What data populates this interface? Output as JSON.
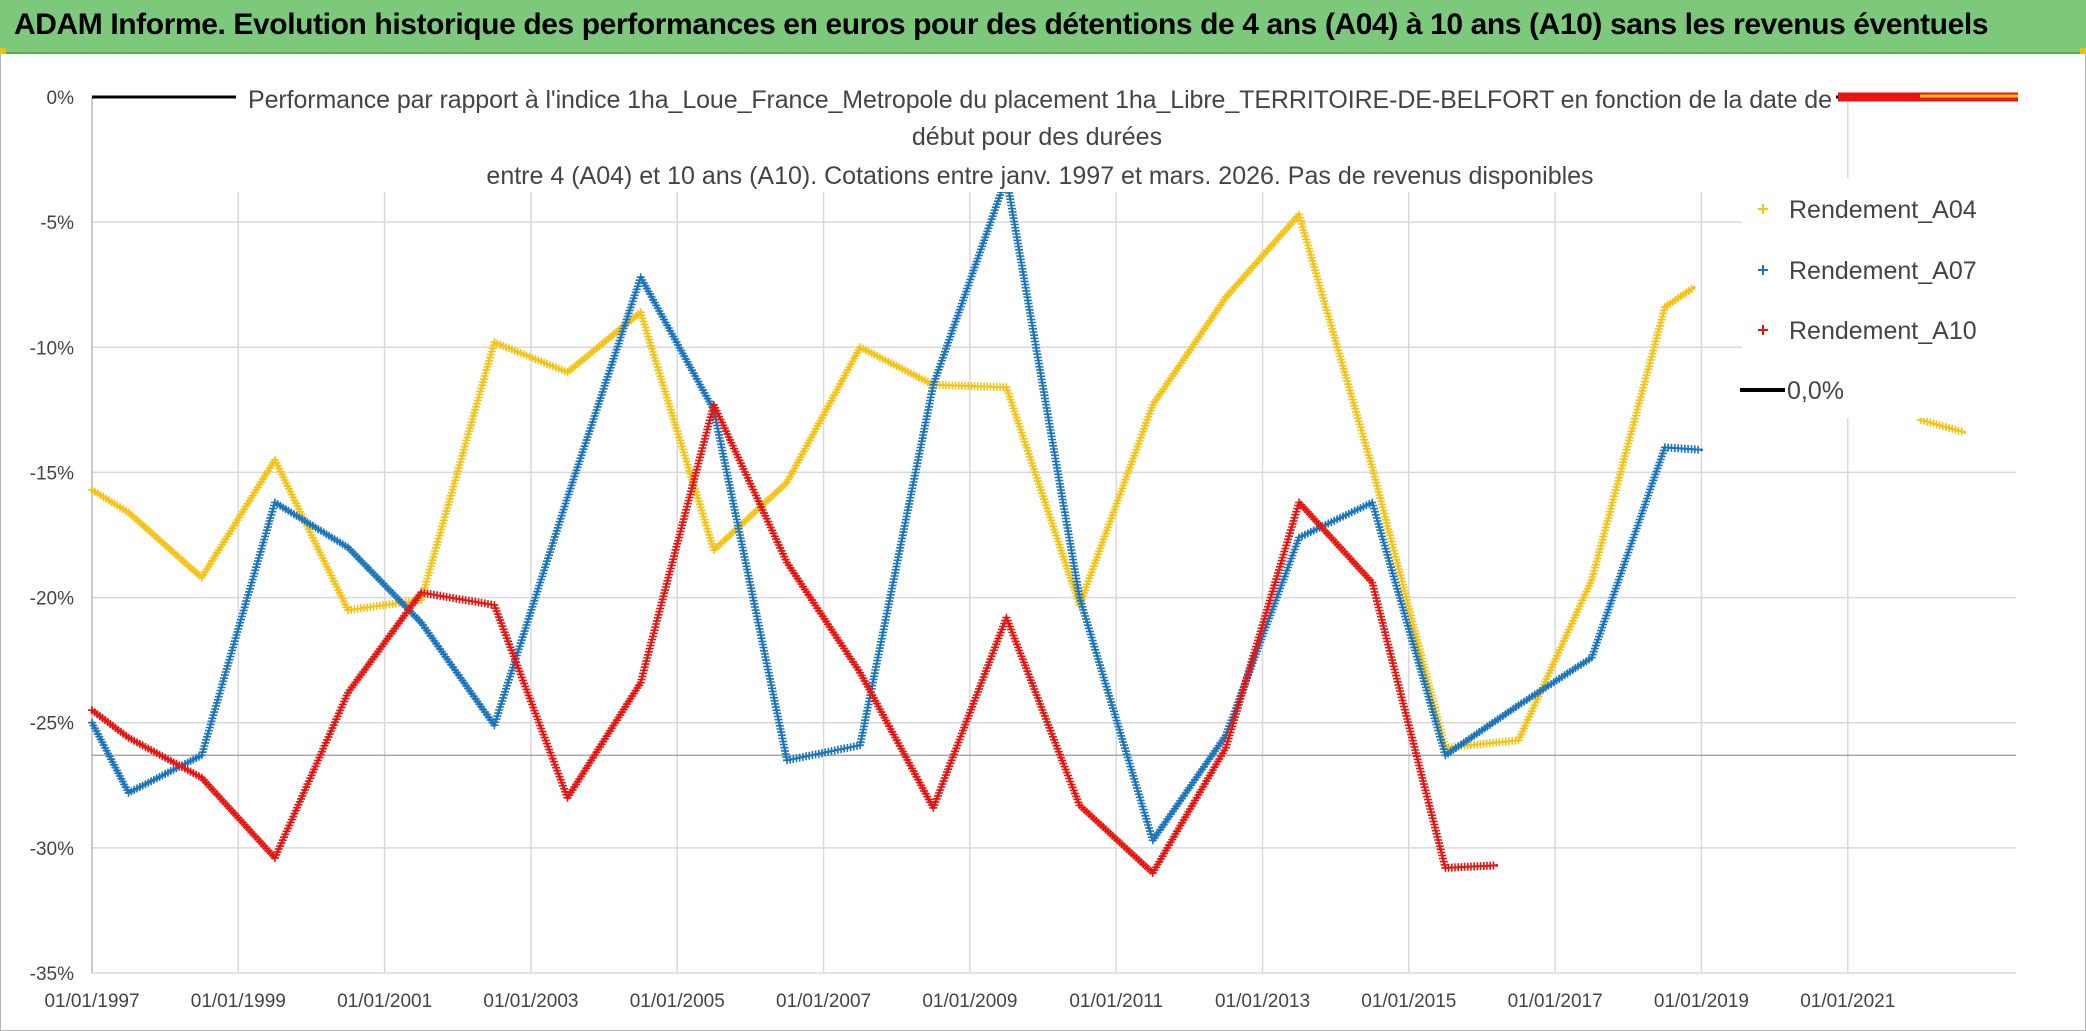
{
  "banner": {
    "title": "ADAM Informe. Evolution historique des performances en euros pour des détentions de 4 ans (A04) à 10 ans (A10) sans les revenus éventuels"
  },
  "chart_data": {
    "type": "scatter",
    "title_lines": [
      "Performance par rapport à l'indice 1ha_Loue_France_Metropole  du placement 1ha_Libre_TERRITOIRE-DE-BELFORT en fonction de la date de",
      "début pour des durées",
      "entre 4 (A04) et 10 ans (A10). Cotations entre janv. 1997 et mars. 2026. Pas de revenus disponibles"
    ],
    "xlabel": "",
    "ylabel": "",
    "xlim": [
      1997.0,
      2023.3
    ],
    "ylim": [
      -35,
      0
    ],
    "x_ticks": [
      "01/01/1997",
      "01/01/1999",
      "01/01/2001",
      "01/01/2003",
      "01/01/2005",
      "01/01/2007",
      "01/01/2009",
      "01/01/2011",
      "01/01/2013",
      "01/01/2015",
      "01/01/2017",
      "01/01/2019",
      "01/01/2021"
    ],
    "y_ticks": [
      "0%",
      "-5%",
      "-10%",
      "-15%",
      "-20%",
      "-25%",
      "-30%",
      "-35%"
    ],
    "grid": true,
    "legend_position": "top-right",
    "reference_line": {
      "name": "0,0%",
      "value": 0,
      "color": "#000000"
    },
    "series": [
      {
        "name": "Rendement_A04",
        "color": "#f5c316",
        "points": [
          [
            1997.0,
            -15.7
          ],
          [
            1997.5,
            -16.6
          ],
          [
            1998.5,
            -19.2
          ],
          [
            1999.5,
            -14.5
          ],
          [
            2000.5,
            -20.5
          ],
          [
            2001.5,
            -20.1
          ],
          [
            2002.5,
            -9.8
          ],
          [
            2003.5,
            -11.0
          ],
          [
            2004.5,
            -8.6
          ],
          [
            2005.5,
            -18.1
          ],
          [
            2006.5,
            -15.4
          ],
          [
            2007.5,
            -10.0
          ],
          [
            2008.5,
            -11.5
          ],
          [
            2009.5,
            -11.6
          ],
          [
            2010.5,
            -20.3
          ],
          [
            2011.5,
            -12.3
          ],
          [
            2012.5,
            -8.0
          ],
          [
            2013.5,
            -4.7
          ],
          [
            2014.5,
            -14.8
          ],
          [
            2015.5,
            -26.0
          ],
          [
            2016.5,
            -25.7
          ],
          [
            2017.5,
            -19.3
          ],
          [
            2018.5,
            -8.4
          ],
          [
            2018.9,
            -7.6
          ]
        ]
      },
      {
        "name": "Rendement_A07",
        "color": "#1b75bc",
        "points": [
          [
            1997.0,
            -25.0
          ],
          [
            1997.5,
            -27.8
          ],
          [
            1998.5,
            -26.3
          ],
          [
            1999.5,
            -16.2
          ],
          [
            2000.5,
            -18.0
          ],
          [
            2001.5,
            -21.0
          ],
          [
            2002.5,
            -25.1
          ],
          [
            2003.5,
            -16.0
          ],
          [
            2004.5,
            -7.2
          ],
          [
            2005.5,
            -12.5
          ],
          [
            2006.5,
            -26.5
          ],
          [
            2007.5,
            -25.9
          ],
          [
            2008.5,
            -11.5
          ],
          [
            2009.5,
            -3.2
          ],
          [
            2010.5,
            -20.0
          ],
          [
            2011.5,
            -29.7
          ],
          [
            2012.5,
            -25.5
          ],
          [
            2013.5,
            -17.6
          ],
          [
            2014.5,
            -16.2
          ],
          [
            2015.5,
            -26.3
          ],
          [
            2016.5,
            -24.3
          ],
          [
            2017.5,
            -22.4
          ],
          [
            2018.5,
            -14.0
          ],
          [
            2019.0,
            -14.1
          ]
        ]
      },
      {
        "name": "Rendement_A10",
        "color": "#e8140f",
        "points": [
          [
            1997.0,
            -24.5
          ],
          [
            1997.5,
            -25.6
          ],
          [
            1998.5,
            -27.2
          ],
          [
            1999.5,
            -30.4
          ],
          [
            2000.5,
            -23.8
          ],
          [
            2001.5,
            -19.8
          ],
          [
            2002.5,
            -20.3
          ],
          [
            2003.5,
            -28.0
          ],
          [
            2004.5,
            -23.4
          ],
          [
            2005.5,
            -12.3
          ],
          [
            2006.5,
            -18.6
          ],
          [
            2007.5,
            -23.0
          ],
          [
            2008.5,
            -28.4
          ],
          [
            2009.5,
            -20.8
          ],
          [
            2010.5,
            -28.3
          ],
          [
            2011.5,
            -31.0
          ],
          [
            2012.5,
            -26.0
          ],
          [
            2013.5,
            -16.2
          ],
          [
            2014.5,
            -19.4
          ],
          [
            2015.5,
            -30.8
          ],
          [
            2016.2,
            -30.7
          ]
        ]
      }
    ],
    "extra_fragment": {
      "series": "Rendement_A04",
      "points": [
        [
          2022.0,
          -12.9
        ],
        [
          2022.6,
          -13.4
        ]
      ]
    }
  }
}
